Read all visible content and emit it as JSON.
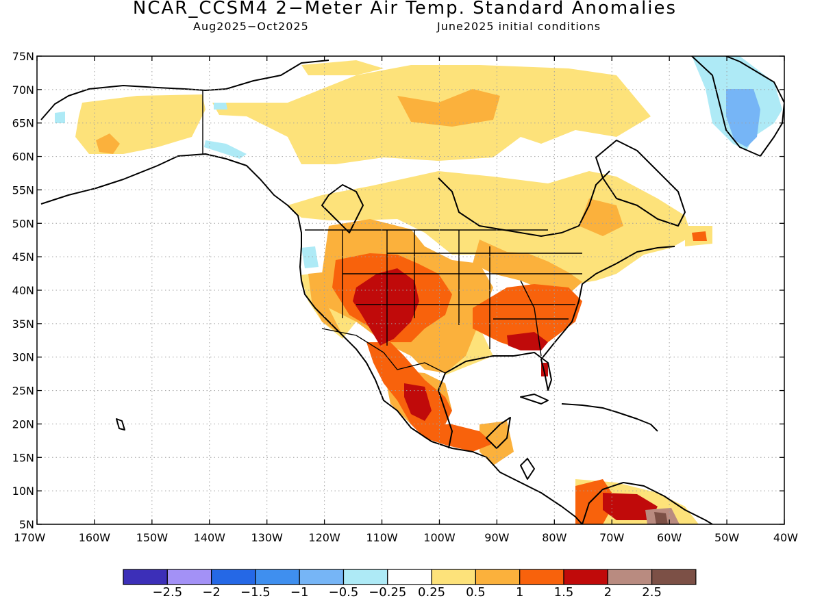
{
  "title": "NCAR_CCSM4 2−Meter Air Temp. Standard Anomalies",
  "subtitle_period": "Aug2025−Oct2025",
  "subtitle_init": "June2025 initial conditions",
  "lat_labels": [
    "75N",
    "70N",
    "65N",
    "60N",
    "55N",
    "50N",
    "45N",
    "40N",
    "35N",
    "30N",
    "25N",
    "20N",
    "15N",
    "10N",
    "5N"
  ],
  "lon_labels": [
    "170W",
    "160W",
    "150W",
    "140W",
    "130W",
    "120W",
    "110W",
    "100W",
    "90W",
    "80W",
    "70W",
    "60W",
    "50W",
    "40W"
  ],
  "colorbar": {
    "colors": [
      "#3c2fb8",
      "#a391f6",
      "#2568e6",
      "#3f8fef",
      "#76b5f6",
      "#aeeaf6",
      "#ffffff",
      "#fde27a",
      "#fbb13c",
      "#f8620c",
      "#c00a0a",
      "#b98b80",
      "#7c5046"
    ],
    "labels": [
      "−2.5",
      "−2",
      "−1.5",
      "−1",
      "−0.5",
      "−0.25",
      "0.25",
      "0.5",
      "1",
      "1.5",
      "2",
      "2.5"
    ]
  }
}
